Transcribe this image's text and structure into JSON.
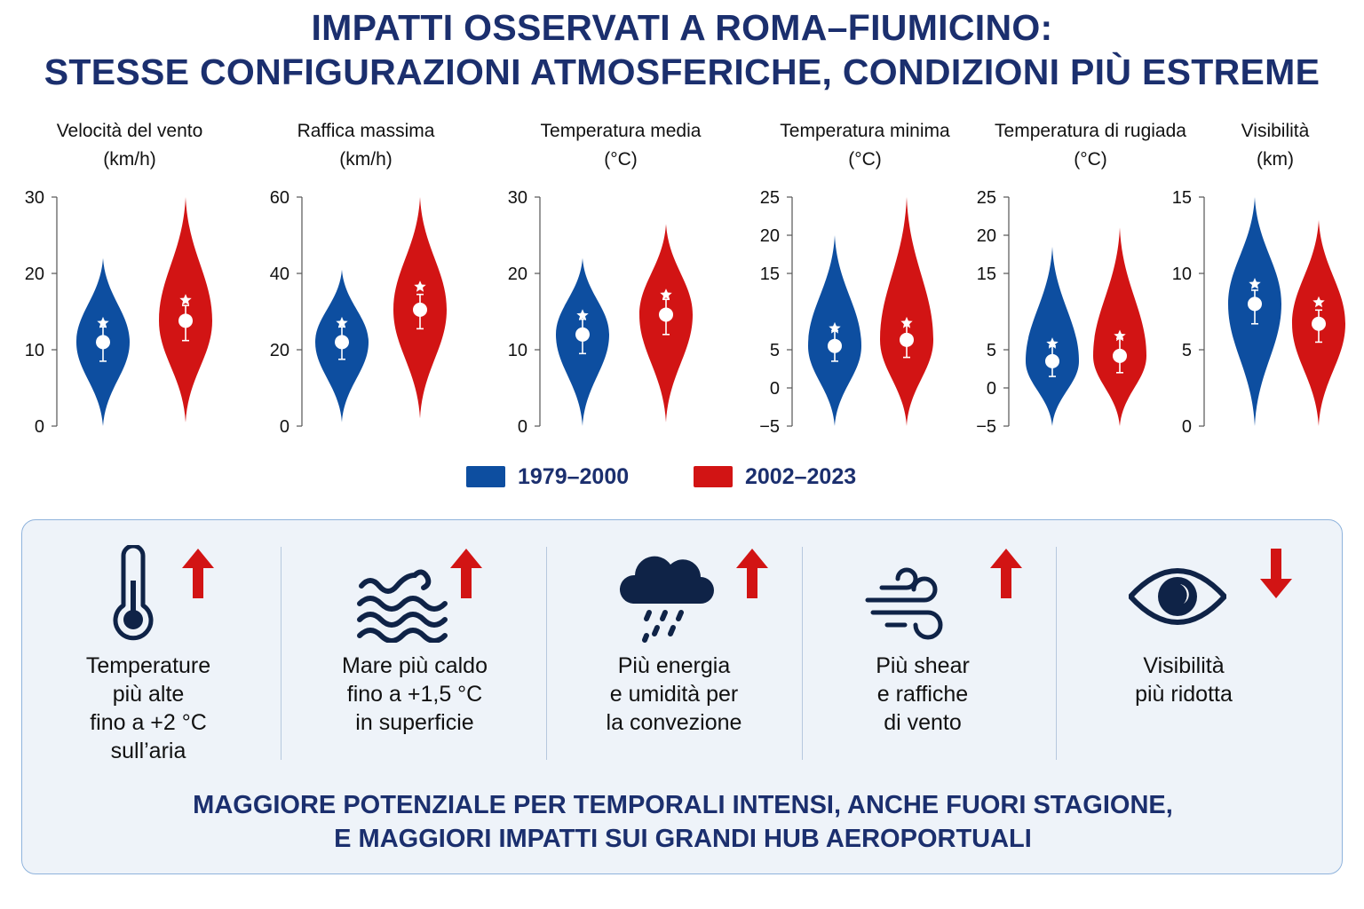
{
  "title": {
    "line1": "IMPATTI OSSERVATI A ROMA–FIUMICINO:",
    "line2": "STESSE CONFIGURAZIONI ATMOSFERICHE, CONDIZIONI PIÙ ESTREME"
  },
  "colors": {
    "blue": "#0d4ea0",
    "red": "#d21414",
    "navy": "#1b2f6e",
    "icon": "#0f2347"
  },
  "legend": [
    {
      "label": "1979–2000",
      "color": "#0d4ea0"
    },
    {
      "label": "2002–2023",
      "color": "#d21414"
    }
  ],
  "chart_data": [
    {
      "type": "violin",
      "title_line1": "Velocità del vento",
      "title_line2": "(km/h)",
      "ylim": [
        0,
        30
      ],
      "ticks": [
        0,
        10,
        20,
        30
      ],
      "tick_labels": [
        "0",
        "10",
        "20",
        "30"
      ],
      "series": [
        {
          "name": "1979–2000",
          "median": 11,
          "q1": 8.5,
          "q3": 13,
          "mean_star": 13.5,
          "min": 0,
          "max": 22,
          "mode": 11
        },
        {
          "name": "2002–2023",
          "median": 13.8,
          "q1": 11.2,
          "q3": 15.8,
          "mean_star": 16.5,
          "min": 0.5,
          "max": 30,
          "mode": 13.8
        }
      ]
    },
    {
      "type": "violin",
      "title_line1": "Raffica massima",
      "title_line2": "(km/h)",
      "ylim": [
        0,
        60
      ],
      "ticks": [
        0,
        20,
        40,
        60
      ],
      "tick_labels": [
        "0",
        "20",
        "40",
        "60"
      ],
      "series": [
        {
          "name": "1979–2000",
          "median": 22,
          "q1": 17.5,
          "q3": 26,
          "mean_star": 27,
          "min": 1,
          "max": 41,
          "mode": 22
        },
        {
          "name": "2002–2023",
          "median": 30.5,
          "q1": 25.5,
          "q3": 34.5,
          "mean_star": 36.5,
          "min": 2,
          "max": 60,
          "mode": 30.5
        }
      ]
    },
    {
      "type": "violin",
      "title_line1": "Temperatura media",
      "title_line2": "(°C)",
      "ylim": [
        0,
        30
      ],
      "ticks": [
        0,
        10,
        20,
        30
      ],
      "tick_labels": [
        "0",
        "10",
        "20",
        "30"
      ],
      "series": [
        {
          "name": "1979–2000",
          "median": 12,
          "q1": 9.5,
          "q3": 14,
          "mean_star": 14.5,
          "min": 0,
          "max": 22,
          "mode": 12
        },
        {
          "name": "2002–2023",
          "median": 14.6,
          "q1": 12,
          "q3": 16.6,
          "mean_star": 17.2,
          "min": 0.5,
          "max": 26.5,
          "mode": 14.6
        }
      ]
    },
    {
      "type": "violin",
      "title_line1": "Temperatura minima",
      "title_line2": "(°C)",
      "ylim": [
        -5,
        25
      ],
      "ticks": [
        -5,
        0,
        5,
        15,
        20,
        25
      ],
      "tick_labels": [
        "−5",
        "0",
        "5",
        "15",
        "20",
        "25"
      ],
      "series": [
        {
          "name": "1979–2000",
          "median": 5.5,
          "q1": 3.5,
          "q3": 7.5,
          "mean_star": 7.8,
          "min": -5,
          "max": 20,
          "mode": 5.5
        },
        {
          "name": "2002–2023",
          "median": 6.3,
          "q1": 4,
          "q3": 8.5,
          "mean_star": 8.5,
          "min": -5,
          "max": 25,
          "mode": 6.3
        }
      ]
    },
    {
      "type": "violin",
      "title_line1": "Temperatura di rugiada",
      "title_line2": "(°C)",
      "ylim": [
        -5,
        25
      ],
      "ticks": [
        -5,
        0,
        5,
        15,
        20,
        25
      ],
      "tick_labels": [
        "−5",
        "0",
        "5",
        "15",
        "20",
        "25"
      ],
      "series": [
        {
          "name": "1979–2000",
          "median": 3.5,
          "q1": 1.5,
          "q3": 5.5,
          "mean_star": 5.8,
          "min": -5,
          "max": 18.5,
          "mode": 3.5
        },
        {
          "name": "2002–2023",
          "median": 4.2,
          "q1": 2,
          "q3": 6.5,
          "mean_star": 6.8,
          "min": -5,
          "max": 21,
          "mode": 4.2
        }
      ]
    },
    {
      "type": "violin",
      "title_line1": "Visibilità",
      "title_line2": "(km)",
      "ylim": [
        0,
        15
      ],
      "ticks": [
        0,
        5,
        10,
        15
      ],
      "tick_labels": [
        "0",
        "5",
        "10",
        "15"
      ],
      "series": [
        {
          "name": "1979–2000",
          "median": 8,
          "q1": 6.7,
          "q3": 8.9,
          "mean_star": 9.3,
          "min": 0,
          "max": 15,
          "mode": 8
        },
        {
          "name": "2002–2023",
          "median": 6.7,
          "q1": 5.5,
          "q3": 7.6,
          "mean_star": 8.1,
          "min": 0,
          "max": 13.5,
          "mode": 6.7
        }
      ]
    }
  ],
  "impacts": [
    {
      "icon": "thermometer-icon",
      "trend": "up",
      "lines": [
        "Temperature",
        "più alte",
        "fino a +2 °C",
        "sull’aria"
      ]
    },
    {
      "icon": "sea-waves-icon",
      "trend": "up",
      "lines": [
        "Mare più caldo",
        "fino a +1,5 °C",
        "in superficie"
      ]
    },
    {
      "icon": "rain-cloud-icon",
      "trend": "up",
      "lines": [
        "Più energia",
        "e umidità per",
        "la convezione"
      ]
    },
    {
      "icon": "wind-icon",
      "trend": "up",
      "lines": [
        "Più shear",
        "e raffiche",
        "di vento"
      ]
    },
    {
      "icon": "eye-icon",
      "trend": "down",
      "lines": [
        "Visibilità",
        "più ridotta"
      ]
    }
  ],
  "conclusion": {
    "line1": "MAGGIORE POTENZIALE PER TEMPORALI INTENSI, ANCHE FUORI STAGIONE,",
    "line2": "E MAGGIORI IMPATTI SUI GRANDI HUB AEROPORTUALI"
  }
}
